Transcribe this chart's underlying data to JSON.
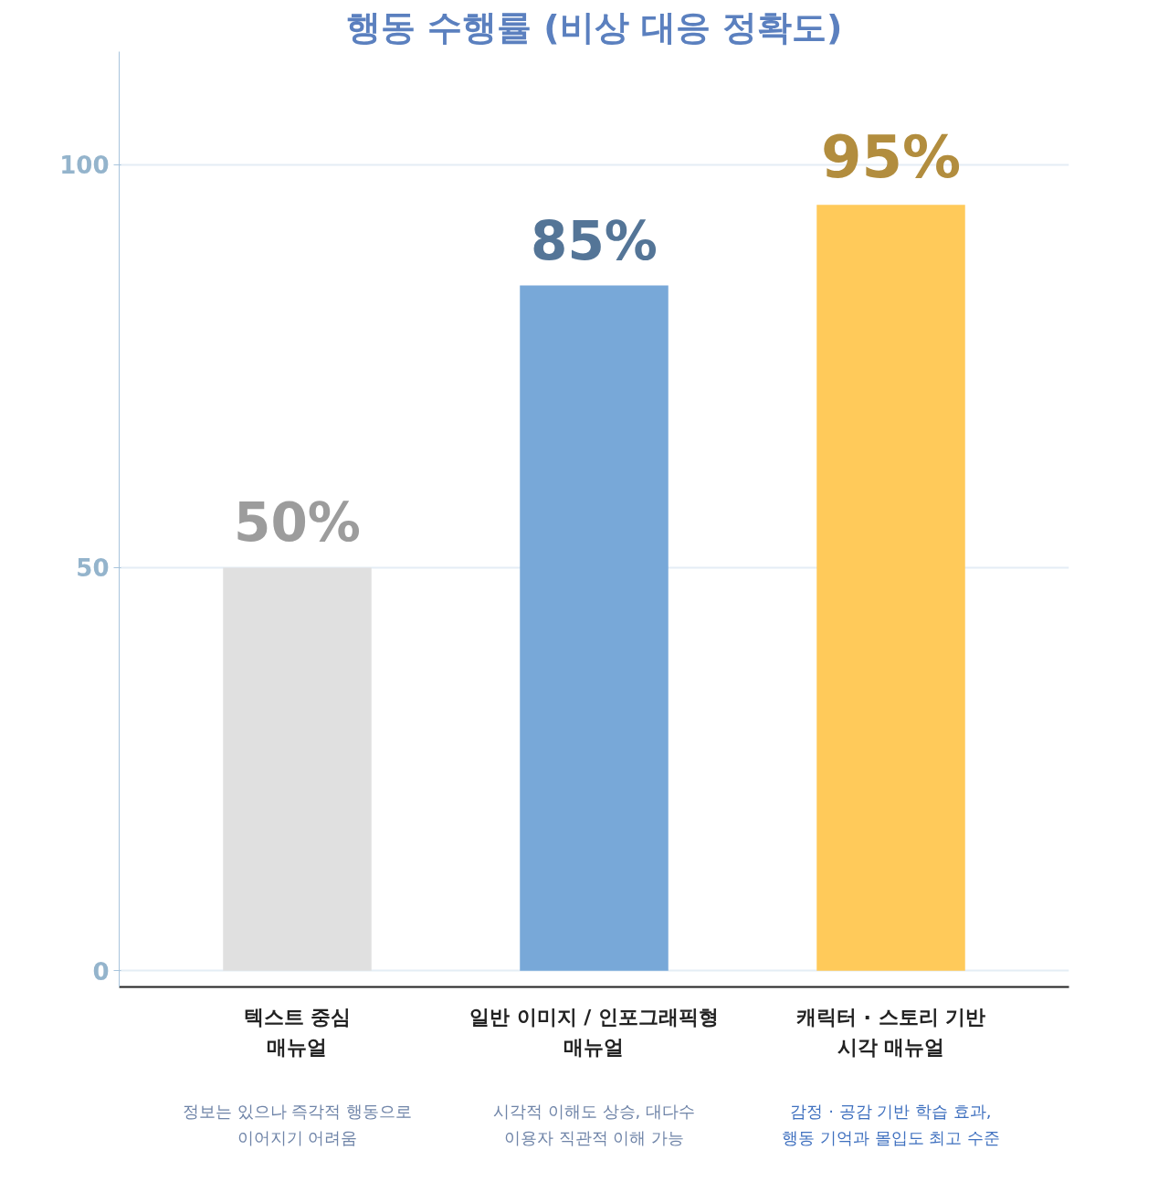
{
  "chart_data": {
    "type": "bar",
    "title": "행동 수행률 (비상 대응 정확도)",
    "categories": [
      "텍스트 중심\n매뉴얼",
      "일반 이미지 / 인포그래픽형\n매뉴얼",
      "캐릭터 · 스토리 기반\n시각 매뉴얼"
    ],
    "values": [
      50,
      85,
      95
    ],
    "colors": [
      "#e0e0e0",
      "#78a8d8",
      "#ffca5a"
    ],
    "value_labels": [
      "50%",
      "85%",
      "95%"
    ],
    "annotations": [
      "정보는 있으나 즉각적 행동으로\n이어지기 어려움",
      "시각적 이해도 상승, 대다수\n이용자 직관적 이해 가능",
      "감정 · 공감 기반 학습 효과,\n행동 기억과 몰입도 최고 수준"
    ],
    "ylim": [
      -2,
      114
    ],
    "yticks": [
      0,
      50,
      100
    ],
    "grid": "y"
  }
}
